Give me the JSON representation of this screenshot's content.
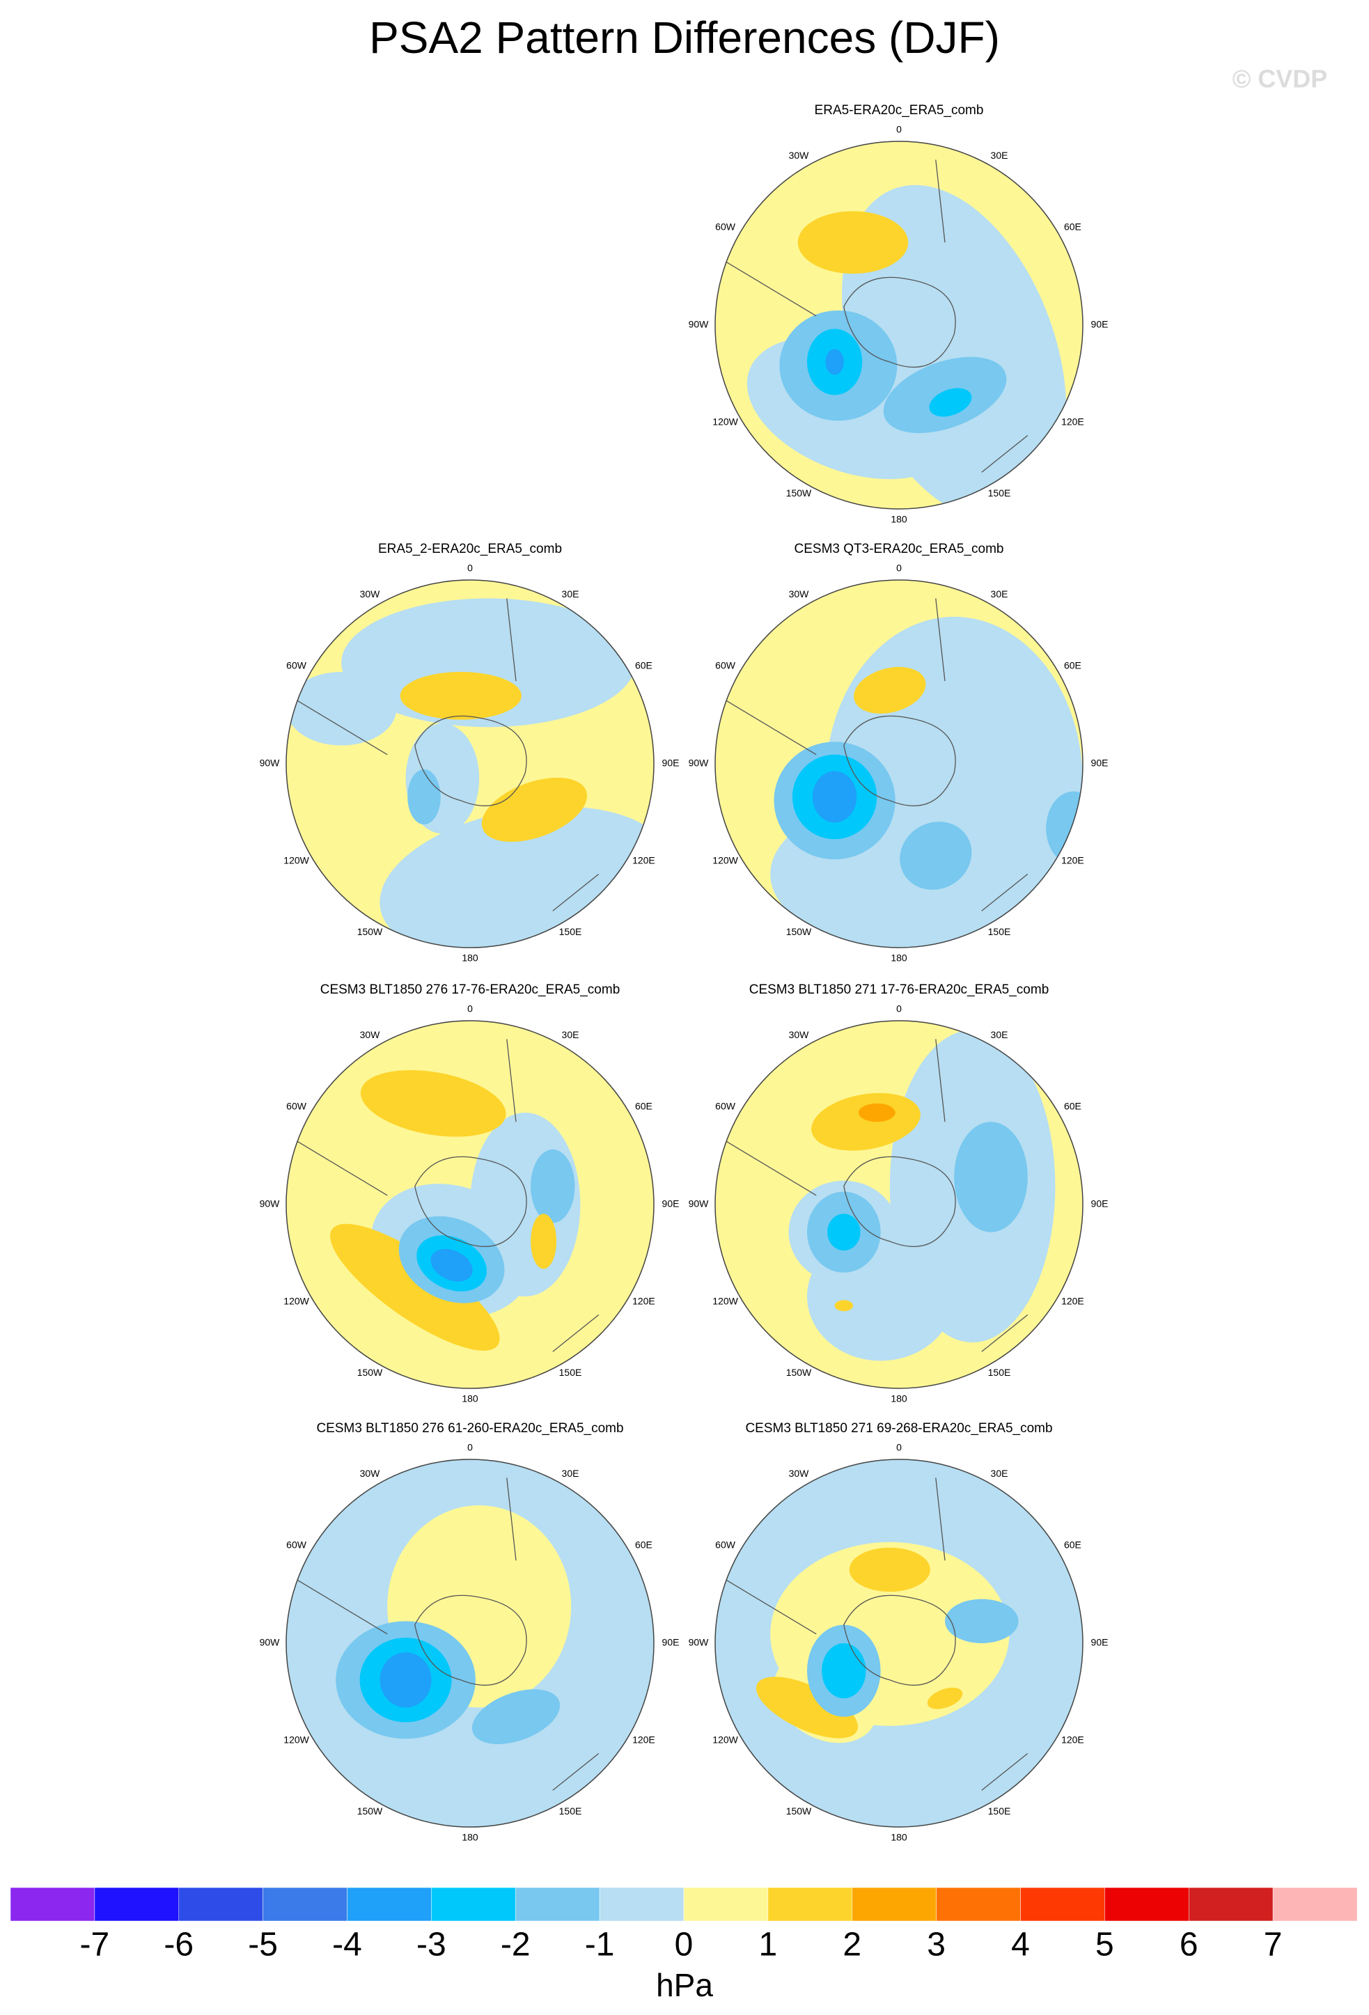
{
  "title": "PSA2 Pattern Differences (DJF)",
  "watermark": "© CVDP",
  "panels": [
    {
      "title": "ERA5-ERA20c_ERA5_comb"
    },
    {
      "title": "ERA5_2-ERA20c_ERA5_comb"
    },
    {
      "title": "CESM3 QT3-ERA20c_ERA5_comb"
    },
    {
      "title": "CESM3 BLT1850 276 17-76-ERA20c_ERA5_comb"
    },
    {
      "title": "CESM3 BLT1850 271 17-76-ERA20c_ERA5_comb"
    },
    {
      "title": "CESM3 BLT1850 276 61-260-ERA20c_ERA5_comb"
    },
    {
      "title": "CESM3 BLT1850 271 69-268-ERA20c_ERA5_comb"
    }
  ],
  "longitude_labels": [
    "0",
    "30E",
    "60E",
    "90E",
    "120E",
    "150E",
    "180",
    "150W",
    "120W",
    "90W",
    "60W",
    "30W"
  ],
  "colorbar": {
    "colors": [
      "#8b27ef",
      "#1f12fe",
      "#2e4de8",
      "#3a7be9",
      "#1fa0f9",
      "#00c8fb",
      "#78c8f0",
      "#b7def2",
      "#fef796",
      "#fdd42b",
      "#fda601",
      "#fe7205",
      "#fe3a02",
      "#ec0202",
      "#d22020",
      "#feb5b5"
    ],
    "ticks": [
      -7,
      -6,
      -5,
      -4,
      -3,
      -2,
      -1,
      0,
      1,
      2,
      3,
      4,
      5,
      6,
      7
    ],
    "unit": "hPa"
  }
}
